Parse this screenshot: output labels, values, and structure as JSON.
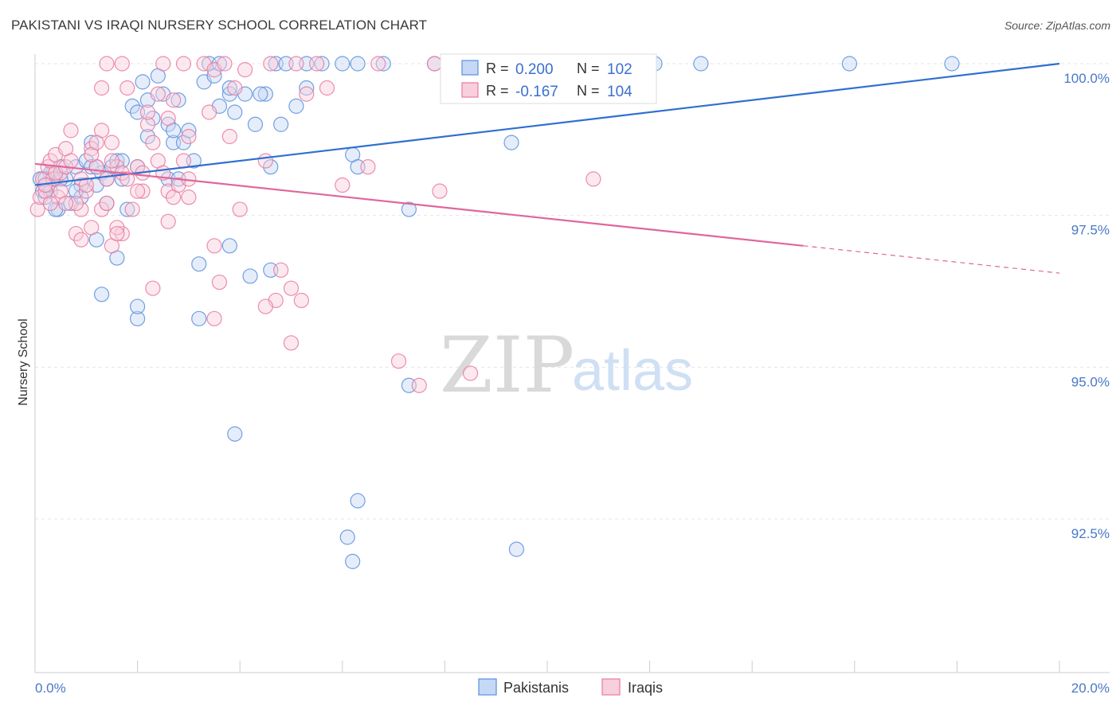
{
  "header": {
    "title": "PAKISTANI VS IRAQI NURSERY SCHOOL CORRELATION CHART",
    "source": "Source: ZipAtlas.com"
  },
  "watermark": {
    "zip": "ZIP",
    "atlas": "atlas"
  },
  "legend_top": {
    "rows": [
      {
        "r_label": "R = ",
        "r_value": "0.200",
        "n_label": "N = ",
        "n_value": "102",
        "color": "#5b8fdd"
      },
      {
        "r_label": "R = ",
        "r_value": "-0.167",
        "n_label": "N = ",
        "n_value": "104",
        "color": "#e87aa0"
      }
    ]
  },
  "legend_bottom": {
    "items": [
      {
        "label": "Pakistanis",
        "color": "#5b8fdd"
      },
      {
        "label": "Iraqis",
        "color": "#e87aa0"
      }
    ]
  },
  "chart_data": {
    "type": "scatter",
    "title": "PAKISTANI VS IRAQI NURSERY SCHOOL CORRELATION CHART",
    "xlabel": "",
    "ylabel": "Nursery School",
    "xlim": [
      0,
      20
    ],
    "ylim": [
      90.2,
      100.15
    ],
    "x_tick_labels": [
      {
        "value": 0,
        "label": "0.0%"
      },
      {
        "value": 20,
        "label": "20.0%"
      }
    ],
    "y_tick_labels": [
      {
        "value": 100,
        "label": "100.0%"
      },
      {
        "value": 97.5,
        "label": "97.5%"
      },
      {
        "value": 95,
        "label": "95.0%"
      },
      {
        "value": 92.5,
        "label": "92.5%"
      }
    ],
    "series": [
      {
        "name": "Pakistanis",
        "color": "#5b8fdd",
        "trend": {
          "x": [
            0,
            20
          ],
          "y": [
            98.0,
            100.0
          ]
        },
        "points": [
          [
            0.1,
            98.1
          ],
          [
            0.15,
            97.9
          ],
          [
            0.2,
            97.8
          ],
          [
            0.25,
            98.0
          ],
          [
            0.3,
            97.9
          ],
          [
            0.35,
            98.2
          ],
          [
            0.4,
            98.1
          ],
          [
            0.45,
            97.6
          ],
          [
            0.5,
            98.3
          ],
          [
            0.6,
            98.1
          ],
          [
            0.7,
            97.7
          ],
          [
            0.8,
            98.3
          ],
          [
            0.9,
            98.0
          ],
          [
            1.0,
            98.4
          ],
          [
            1.1,
            98.3
          ],
          [
            1.2,
            98.0
          ],
          [
            1.3,
            98.2
          ],
          [
            1.4,
            97.7
          ],
          [
            1.5,
            98.3
          ],
          [
            1.6,
            98.4
          ],
          [
            1.7,
            98.4
          ],
          [
            1.8,
            97.6
          ],
          [
            1.9,
            99.3
          ],
          [
            2.0,
            99.2
          ],
          [
            2.1,
            99.7
          ],
          [
            2.2,
            99.4
          ],
          [
            2.3,
            99.1
          ],
          [
            2.4,
            99.8
          ],
          [
            2.5,
            99.5
          ],
          [
            2.6,
            99.0
          ],
          [
            2.7,
            98.7
          ],
          [
            2.8,
            99.4
          ],
          [
            2.9,
            98.7
          ],
          [
            3.0,
            98.9
          ],
          [
            3.3,
            99.7
          ],
          [
            3.4,
            100.0
          ],
          [
            3.5,
            99.8
          ],
          [
            3.6,
            100.0
          ],
          [
            3.8,
            99.5
          ],
          [
            3.9,
            99.2
          ],
          [
            4.1,
            99.5
          ],
          [
            4.3,
            99.0
          ],
          [
            4.5,
            99.5
          ],
          [
            4.6,
            98.3
          ],
          [
            4.7,
            100.0
          ],
          [
            4.9,
            100.0
          ],
          [
            5.1,
            99.3
          ],
          [
            5.3,
            100.0
          ],
          [
            5.6,
            100.0
          ],
          [
            6.0,
            100.0
          ],
          [
            6.3,
            100.0
          ],
          [
            6.8,
            100.0
          ],
          [
            7.8,
            100.0
          ],
          [
            8.1,
            100.0
          ],
          [
            8.5,
            100.0
          ],
          [
            9.1,
            100.0
          ],
          [
            9.6,
            100.0
          ],
          [
            12.1,
            100.0
          ],
          [
            13.0,
            100.0
          ],
          [
            15.9,
            100.0
          ],
          [
            17.9,
            100.0
          ],
          [
            4.8,
            99.0
          ],
          [
            5.3,
            99.6
          ],
          [
            6.2,
            98.5
          ],
          [
            6.3,
            98.3
          ],
          [
            9.3,
            98.7
          ],
          [
            7.3,
            97.6
          ],
          [
            3.8,
            97.0
          ],
          [
            4.2,
            96.5
          ],
          [
            4.6,
            96.6
          ],
          [
            3.2,
            96.7
          ],
          [
            3.2,
            95.8
          ],
          [
            2.0,
            95.8
          ],
          [
            1.3,
            96.2
          ],
          [
            2.0,
            96.0
          ],
          [
            1.6,
            96.8
          ],
          [
            1.2,
            97.1
          ],
          [
            0.9,
            97.8
          ],
          [
            0.4,
            97.6
          ],
          [
            7.3,
            94.7
          ],
          [
            3.9,
            93.9
          ],
          [
            6.3,
            92.8
          ],
          [
            6.1,
            92.2
          ],
          [
            6.2,
            91.8
          ],
          [
            9.4,
            92.0
          ],
          [
            0.3,
            98.2
          ],
          [
            0.2,
            98.1
          ],
          [
            0.5,
            98.1
          ],
          [
            1.1,
            98.7
          ],
          [
            2.6,
            98.1
          ],
          [
            3.1,
            98.4
          ],
          [
            4.4,
            99.5
          ],
          [
            2.2,
            98.8
          ],
          [
            2.7,
            98.9
          ],
          [
            3.6,
            99.3
          ],
          [
            1.7,
            98.1
          ],
          [
            2.0,
            98.3
          ],
          [
            1.2,
            98.3
          ],
          [
            0.8,
            97.9
          ],
          [
            3.8,
            99.6
          ],
          [
            2.8,
            98.1
          ],
          [
            1.4,
            98.1
          ]
        ]
      },
      {
        "name": "Iraqis",
        "color": "#e87aa0",
        "trend": {
          "x": [
            0,
            15
          ],
          "y": [
            98.35,
            97.0
          ]
        },
        "trend_dashed": {
          "x": [
            15,
            20
          ],
          "y": [
            97.0,
            96.55
          ]
        },
        "points": [
          [
            0.05,
            97.6
          ],
          [
            0.1,
            97.8
          ],
          [
            0.15,
            98.1
          ],
          [
            0.2,
            97.9
          ],
          [
            0.25,
            98.3
          ],
          [
            0.3,
            98.4
          ],
          [
            0.35,
            98.1
          ],
          [
            0.4,
            98.5
          ],
          [
            0.45,
            97.8
          ],
          [
            0.5,
            98.2
          ],
          [
            0.6,
            98.6
          ],
          [
            0.7,
            98.9
          ],
          [
            0.8,
            97.2
          ],
          [
            0.9,
            97.6
          ],
          [
            1.0,
            97.9
          ],
          [
            1.1,
            98.6
          ],
          [
            1.2,
            98.3
          ],
          [
            1.3,
            98.9
          ],
          [
            1.4,
            98.1
          ],
          [
            1.5,
            98.7
          ],
          [
            1.6,
            98.3
          ],
          [
            1.7,
            98.2
          ],
          [
            1.8,
            98.1
          ],
          [
            1.9,
            97.6
          ],
          [
            2.0,
            98.3
          ],
          [
            2.1,
            98.2
          ],
          [
            2.2,
            99.0
          ],
          [
            2.3,
            98.7
          ],
          [
            2.4,
            98.4
          ],
          [
            2.5,
            98.2
          ],
          [
            2.6,
            97.9
          ],
          [
            2.7,
            97.8
          ],
          [
            2.8,
            98.0
          ],
          [
            2.9,
            98.4
          ],
          [
            3.0,
            98.1
          ],
          [
            1.3,
            99.6
          ],
          [
            1.8,
            99.6
          ],
          [
            2.4,
            99.5
          ],
          [
            2.5,
            100.0
          ],
          [
            2.6,
            99.1
          ],
          [
            2.9,
            100.0
          ],
          [
            3.3,
            100.0
          ],
          [
            3.5,
            99.9
          ],
          [
            3.7,
            100.0
          ],
          [
            3.9,
            99.6
          ],
          [
            4.1,
            99.9
          ],
          [
            4.6,
            100.0
          ],
          [
            5.1,
            100.0
          ],
          [
            5.5,
            100.0
          ],
          [
            6.7,
            100.0
          ],
          [
            7.8,
            100.0
          ],
          [
            1.4,
            100.0
          ],
          [
            1.7,
            100.0
          ],
          [
            4.0,
            97.6
          ],
          [
            3.5,
            97.0
          ],
          [
            4.8,
            96.6
          ],
          [
            4.7,
            96.1
          ],
          [
            5.0,
            96.3
          ],
          [
            5.2,
            96.1
          ],
          [
            4.5,
            96.0
          ],
          [
            3.6,
            96.4
          ],
          [
            3.5,
            95.8
          ],
          [
            2.3,
            96.3
          ],
          [
            2.6,
            97.4
          ],
          [
            1.7,
            97.2
          ],
          [
            1.5,
            97.0
          ],
          [
            2.1,
            97.9
          ],
          [
            1.6,
            97.3
          ],
          [
            5.0,
            95.4
          ],
          [
            7.1,
            95.1
          ],
          [
            7.5,
            94.7
          ],
          [
            8.5,
            94.9
          ],
          [
            6.0,
            98.0
          ],
          [
            6.5,
            98.3
          ],
          [
            7.9,
            97.9
          ],
          [
            10.9,
            98.1
          ],
          [
            0.2,
            98.0
          ],
          [
            0.3,
            97.7
          ],
          [
            0.4,
            98.2
          ],
          [
            0.5,
            97.9
          ],
          [
            0.6,
            98.3
          ],
          [
            0.7,
            98.4
          ],
          [
            0.8,
            97.7
          ],
          [
            0.9,
            98.1
          ],
          [
            1.0,
            98.0
          ],
          [
            1.1,
            98.5
          ],
          [
            1.2,
            98.7
          ],
          [
            1.3,
            97.6
          ],
          [
            1.4,
            97.7
          ],
          [
            1.5,
            98.4
          ],
          [
            1.6,
            97.2
          ],
          [
            2.2,
            99.2
          ],
          [
            2.7,
            99.4
          ],
          [
            3.0,
            98.8
          ],
          [
            3.4,
            99.2
          ],
          [
            3.8,
            98.8
          ],
          [
            4.5,
            98.4
          ],
          [
            5.3,
            99.5
          ],
          [
            5.7,
            99.6
          ],
          [
            3.0,
            97.8
          ],
          [
            2.0,
            97.9
          ],
          [
            1.1,
            97.3
          ],
          [
            0.6,
            97.7
          ],
          [
            0.9,
            97.1
          ]
        ]
      }
    ]
  }
}
